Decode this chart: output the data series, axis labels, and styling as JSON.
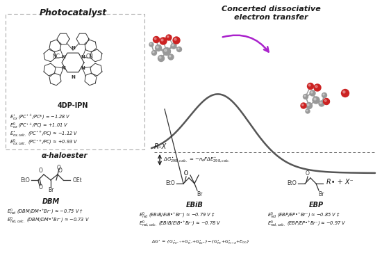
{
  "bg_color": "#ffffff",
  "text_color": "#1a1a1a",
  "curve_color": "#555555",
  "arrow_color": "#aa22cc",
  "box_color": "#aaaaaa",
  "gray_ball": "#999999",
  "red_ball": "#cc2222",
  "gray_ball_dark": "#666666",
  "title_photocatalyst": "Photocatalyst",
  "title_concerted": "Concerted dissociative\nelectron transfer",
  "label_4dpipn": "4DP-IPN",
  "label_rx": "R–X",
  "label_rxminus": "R• + X⁻",
  "label_alpha_haloester": "α-haloester",
  "pc_line1": "$E_{ox}^{\\bullet}$ (PC$^{\\bullet+}$/PC*) = −1.28 V",
  "pc_line2": "$E_{ox}^{0}$ (PC$^{\\bullet+}$/PC) = +1.01 V",
  "pc_line3": "$E_{ox,calc.}^{\\bullet}$ (PC$^{\\bullet+}$/PC) ≈ −1.12 V",
  "pc_line4": "$E_{ox,calc.}^{0}$ (PC$^{\\bullet+}$/PC) ≈ +0.93 V",
  "dg_label": "Δ$G_{298,calc.}^{\\bullet}$ = −$n_eF$Δ$E_{298,calc.}^{\\bullet}$",
  "dg_eq": "Δ$G^{\\bullet}$ ≈ {$G_{PC^{\\bullet+}}^{\\bullet}$+$G_{R^{\\bullet}}^{\\bullet}$+$G_{Br^{-}}^{\\bullet}$}−{$G_{PC}^{\\bullet}$+$G_{R-X}^{\\bullet}$+$E_{00}$}",
  "dbm_name": "DBM",
  "dbm_e1": "$E_{red}^{0}$ (DBM/DM•⁺Br⁻) ≈ −0.75 V †",
  "dbm_e2": "$E_{red,calc.}^{0}$ (DBM/DM•⁺Br⁻) ≈ −0.73 V",
  "ebib_name": "EBiB",
  "ebib_e1": "$E_{red}^{0}$ (EBiB/EiB•⁺Br⁻) ≈ −0.79 V ‡",
  "ebib_e2": "$E_{red,calc.}^{0}$ (EBiB/EiB•⁺Br⁻) ≈ −0.78 V",
  "ebp_name": "EBP",
  "ebp_e1": "$E_{red}^{0}$ (EBP/EP•⁺Br⁻) ≈ −0.85 V ‡",
  "ebp_e2": "$E_{red,calc.}^{0}$ (EBP/EP•⁺Br⁻) ≈ −0.97 V"
}
